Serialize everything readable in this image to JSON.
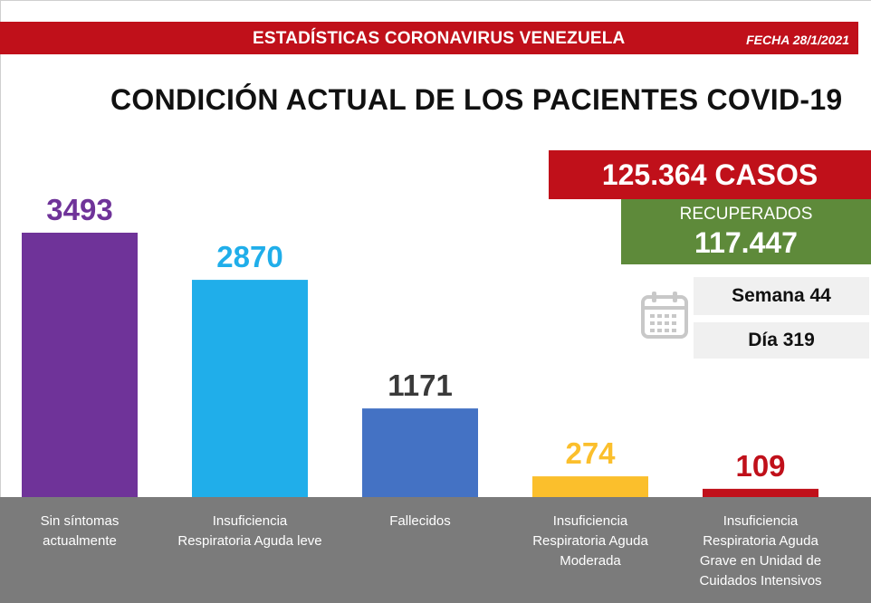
{
  "header": {
    "title": "ESTADÍSTICAS CORONAVIRUS VENEZUELA",
    "date": "FECHA 28/1/2021"
  },
  "main_title": "CONDICIÓN ACTUAL DE LOS PACIENTES COVID-19",
  "summary": {
    "cases": "125.364 CASOS",
    "recovered_label": "RECUPERADOS",
    "recovered_value": "117.447",
    "week": "Semana 44",
    "day": "Día 319"
  },
  "icons": {
    "calendar": "calendar-icon"
  },
  "colors": {
    "header_red": "#c0101a",
    "recovered_green": "#5e8a3a",
    "axis_gray": "#7b7b7b"
  },
  "chart_data": {
    "type": "bar",
    "title": "CONDICIÓN ACTUAL DE LOS PACIENTES COVID-19",
    "categories": [
      [
        "Sin síntomas",
        "actualmente"
      ],
      [
        "Insuficiencia",
        "Respiratoria Aguda leve"
      ],
      [
        "Fallecidos"
      ],
      [
        "Insuficiencia",
        "Respiratoria Aguda",
        "Moderada"
      ],
      [
        "Insuficiencia",
        "Respiratoria Aguda",
        "Grave en Unidad de",
        "Cuidados Intensivos"
      ]
    ],
    "values": [
      3493,
      2870,
      1171,
      274,
      109
    ],
    "value_labels": [
      "3493",
      "2870",
      "1171",
      "274",
      "109"
    ],
    "bar_colors": [
      "#6f3399",
      "#20aeea",
      "#4472c4",
      "#fbbf2c",
      "#c0101a"
    ],
    "label_colors": [
      "#6f3399",
      "#20aeea",
      "#3a3a3a",
      "#fbbf2c",
      "#c0101a"
    ],
    "grid": false,
    "legend": "none"
  }
}
